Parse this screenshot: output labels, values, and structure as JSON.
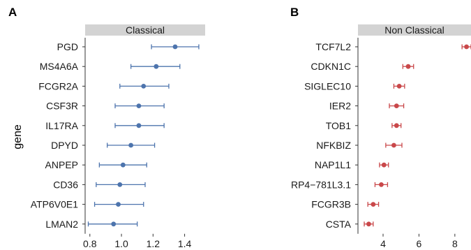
{
  "figure": {
    "ylabel": "gene"
  },
  "chart_data": [
    {
      "type": "scatter",
      "panel": "A",
      "title": "Classical",
      "ylabel": "gene",
      "xlabel": "",
      "color": "#4d74ad",
      "genes": [
        "PGD",
        "MS4A6A",
        "FCGR2A",
        "CSF3R",
        "IL17RA",
        "DPYD",
        "ANPEP",
        "CD36",
        "ATP6V0E1",
        "LMAN2"
      ],
      "values": [
        1.34,
        1.22,
        1.14,
        1.11,
        1.11,
        1.06,
        1.01,
        0.99,
        0.98,
        0.95
      ],
      "ci_low": [
        1.19,
        1.06,
        0.99,
        0.96,
        0.96,
        0.91,
        0.86,
        0.84,
        0.83,
        0.79
      ],
      "ci_high": [
        1.49,
        1.37,
        1.3,
        1.27,
        1.27,
        1.21,
        1.16,
        1.15,
        1.14,
        1.1
      ],
      "xticks": [
        0.8,
        1.0,
        1.2,
        1.4
      ],
      "xtick_labels": [
        "0.8",
        "1.0",
        "1.2",
        "1.4"
      ],
      "xlim": [
        0.77,
        1.53
      ]
    },
    {
      "type": "scatter",
      "panel": "B",
      "title": "Non Classical",
      "xlabel": "",
      "color": "#c9484a",
      "genes": [
        "TCF7L2",
        "CDKN1C",
        "SIGLEC10",
        "IER2",
        "TOB1",
        "NFKBIZ",
        "NAP1L1",
        "RP4−781L3.1",
        "FCGR3B",
        "CSTA"
      ],
      "values": [
        8.65,
        5.4,
        4.9,
        4.75,
        4.75,
        4.6,
        4.05,
        3.9,
        3.45,
        3.2
      ],
      "ci_low": [
        8.4,
        5.1,
        4.6,
        4.35,
        4.5,
        4.15,
        3.8,
        3.55,
        3.15,
        2.95
      ],
      "ci_high": [
        8.9,
        5.7,
        5.2,
        5.15,
        5.0,
        5.05,
        4.3,
        4.25,
        3.75,
        3.45
      ],
      "xticks": [
        4,
        6,
        8
      ],
      "xtick_labels": [
        "4",
        "6",
        "8"
      ],
      "xlim": [
        2.6,
        8.9
      ]
    }
  ]
}
